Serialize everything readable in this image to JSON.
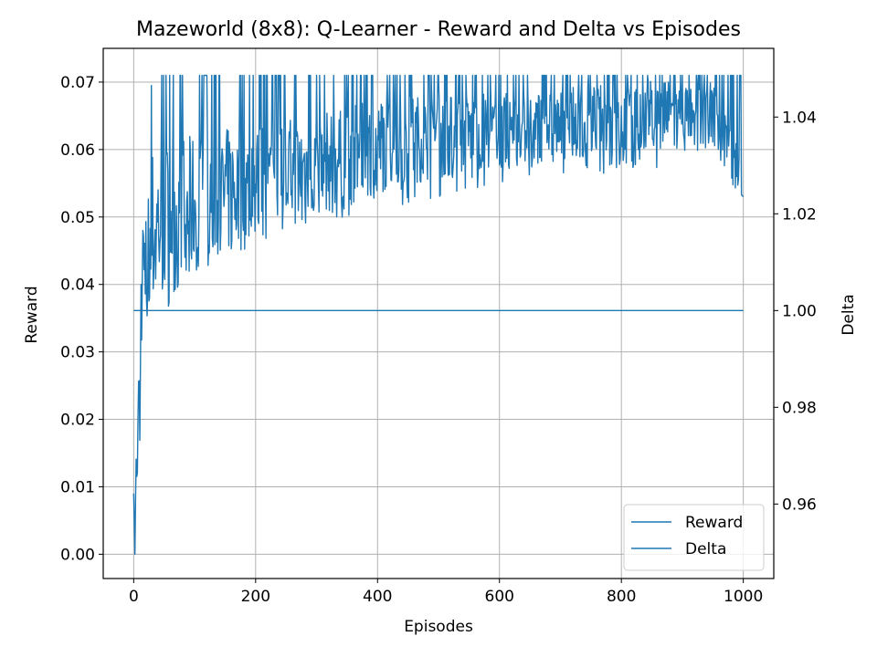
{
  "chart_data": {
    "type": "line",
    "title": "Mazeworld (8x8): Q-Learner - Reward and Delta vs Episodes",
    "xlabel": "Episodes",
    "ylabel": "Reward",
    "y2label": "Delta",
    "xlim": [
      -50,
      1050
    ],
    "ylim": [
      -0.0036,
      0.075
    ],
    "y2lim": [
      0.9446,
      1.0542
    ],
    "xticks": [
      0,
      200,
      400,
      600,
      800,
      1000
    ],
    "yticks": [
      0.0,
      0.01,
      0.02,
      0.03,
      0.04,
      0.05,
      0.06,
      0.07
    ],
    "y2ticks": [
      0.96,
      0.98,
      1.0,
      1.02,
      1.04
    ],
    "grid": true,
    "legend_position": "lower right",
    "color": "#1f77b4",
    "series": [
      {
        "name": "Reward",
        "axis": "left",
        "x": [
          0,
          2,
          4,
          6,
          8,
          10,
          12,
          14,
          16,
          18,
          20,
          22,
          24,
          26,
          28,
          30,
          35,
          40,
          45,
          50,
          60,
          70,
          80,
          90,
          100,
          120,
          140,
          160,
          180,
          200,
          230,
          260,
          300,
          350,
          400,
          450,
          500,
          550,
          600,
          650,
          700,
          750,
          800,
          850,
          900,
          950,
          1000
        ],
        "values": [
          0.009,
          0.0,
          0.015,
          0.012,
          0.024,
          0.02,
          0.028,
          0.035,
          0.04,
          0.038,
          0.042,
          0.045,
          0.046,
          0.048,
          0.05,
          0.047,
          0.046,
          0.048,
          0.049,
          0.048,
          0.05,
          0.049,
          0.05,
          0.05,
          0.051,
          0.051,
          0.052,
          0.053,
          0.053,
          0.054,
          0.055,
          0.056,
          0.057,
          0.058,
          0.06,
          0.061,
          0.061,
          0.062,
          0.062,
          0.063,
          0.063,
          0.064,
          0.064,
          0.065,
          0.065,
          0.065,
          0.053
        ],
        "range_low": [
          0.009,
          0.0,
          0.008,
          0.012,
          0.018,
          0.016,
          0.02,
          0.025,
          0.028,
          0.03,
          0.031,
          0.032,
          0.032,
          0.033,
          0.033,
          0.034,
          0.034,
          0.035,
          0.035,
          0.036,
          0.037,
          0.038,
          0.039,
          0.04,
          0.041,
          0.042,
          0.043,
          0.044,
          0.045,
          0.046,
          0.047,
          0.048,
          0.049,
          0.05,
          0.051,
          0.052,
          0.053,
          0.054,
          0.055,
          0.055,
          0.056,
          0.056,
          0.057,
          0.057,
          0.058,
          0.058,
          0.053
        ],
        "range_high": [
          0.009,
          0.0,
          0.016,
          0.02,
          0.028,
          0.035,
          0.04,
          0.046,
          0.05,
          0.055,
          0.058,
          0.062,
          0.066,
          0.068,
          0.069,
          0.07,
          0.071,
          0.071,
          0.071,
          0.071,
          0.071,
          0.071,
          0.071,
          0.071,
          0.071,
          0.071,
          0.071,
          0.071,
          0.071,
          0.071,
          0.071,
          0.071,
          0.071,
          0.071,
          0.071,
          0.071,
          0.071,
          0.071,
          0.071,
          0.071,
          0.071,
          0.071,
          0.071,
          0.071,
          0.071,
          0.071,
          0.071
        ],
        "noise_note": ""
      },
      {
        "name": "Delta",
        "axis": "right",
        "x": [
          0,
          1000
        ],
        "values": [
          1.0,
          1.0
        ]
      }
    ]
  }
}
